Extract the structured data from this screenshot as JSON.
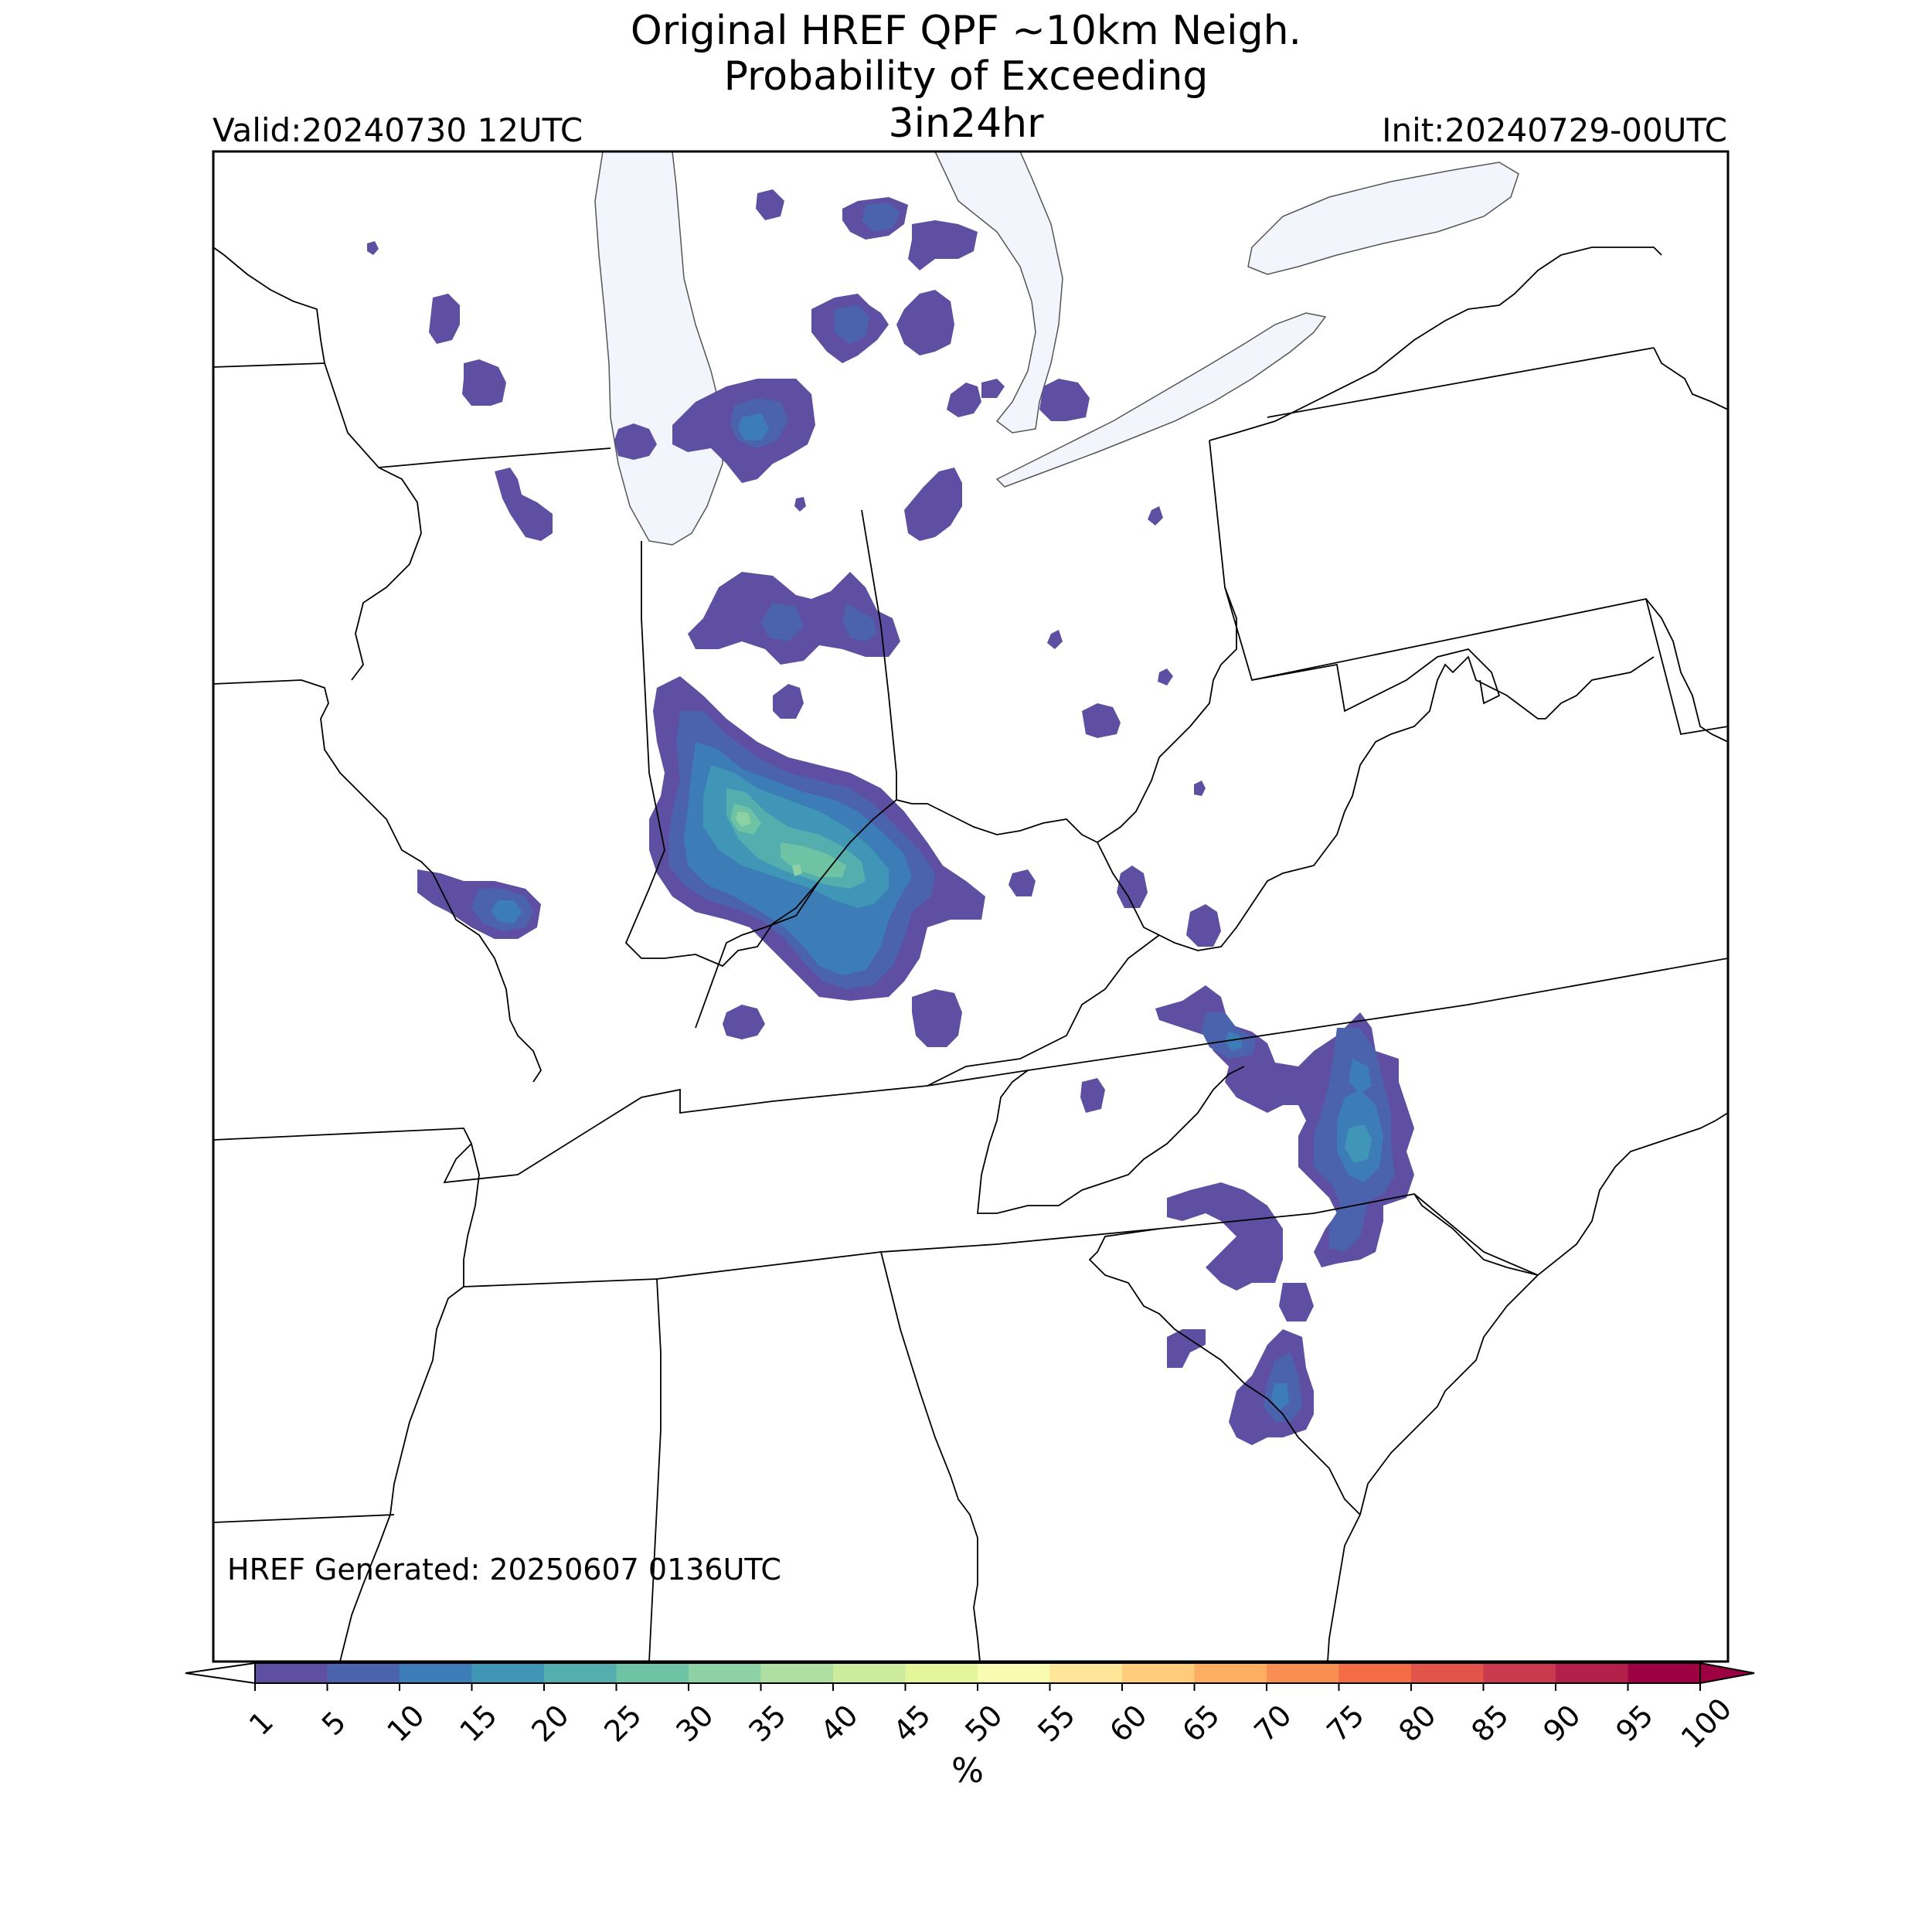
{
  "header": {
    "title_line1": "Original HREF QPF ~10km Neigh.",
    "title_line2": "Probability of Exceeding",
    "title_line3": "3in24hr",
    "valid": "Valid:20240730 12UTC",
    "init": "Init:20240729-00UTC"
  },
  "footer": {
    "generated": "HREF Generated: 20250607 0136UTC"
  },
  "colorbar": {
    "label": "%",
    "ticks": [
      "1",
      "5",
      "10",
      "15",
      "20",
      "25",
      "30",
      "35",
      "40",
      "45",
      "50",
      "55",
      "60",
      "65",
      "70",
      "75",
      "80",
      "85",
      "90",
      "95",
      "100"
    ],
    "colors": [
      "#5e4fa2",
      "#4b63ad",
      "#3c7db7",
      "#3f96b7",
      "#54aead",
      "#6ec3a5",
      "#8ed1a4",
      "#afdea3",
      "#cdeb9c",
      "#e5f59a",
      "#f8fbb0",
      "#fee597",
      "#fecc7b",
      "#fdae61",
      "#f98e52",
      "#f36c44",
      "#e2534a",
      "#ca3a4e",
      "#b2204a",
      "#9e0142"
    ],
    "under_color": "#ffffff",
    "over_color": "#9e0142"
  },
  "map": {
    "land_color": "#ffffff",
    "water_color": "#f2f6fc",
    "border_color": "#000000"
  }
}
